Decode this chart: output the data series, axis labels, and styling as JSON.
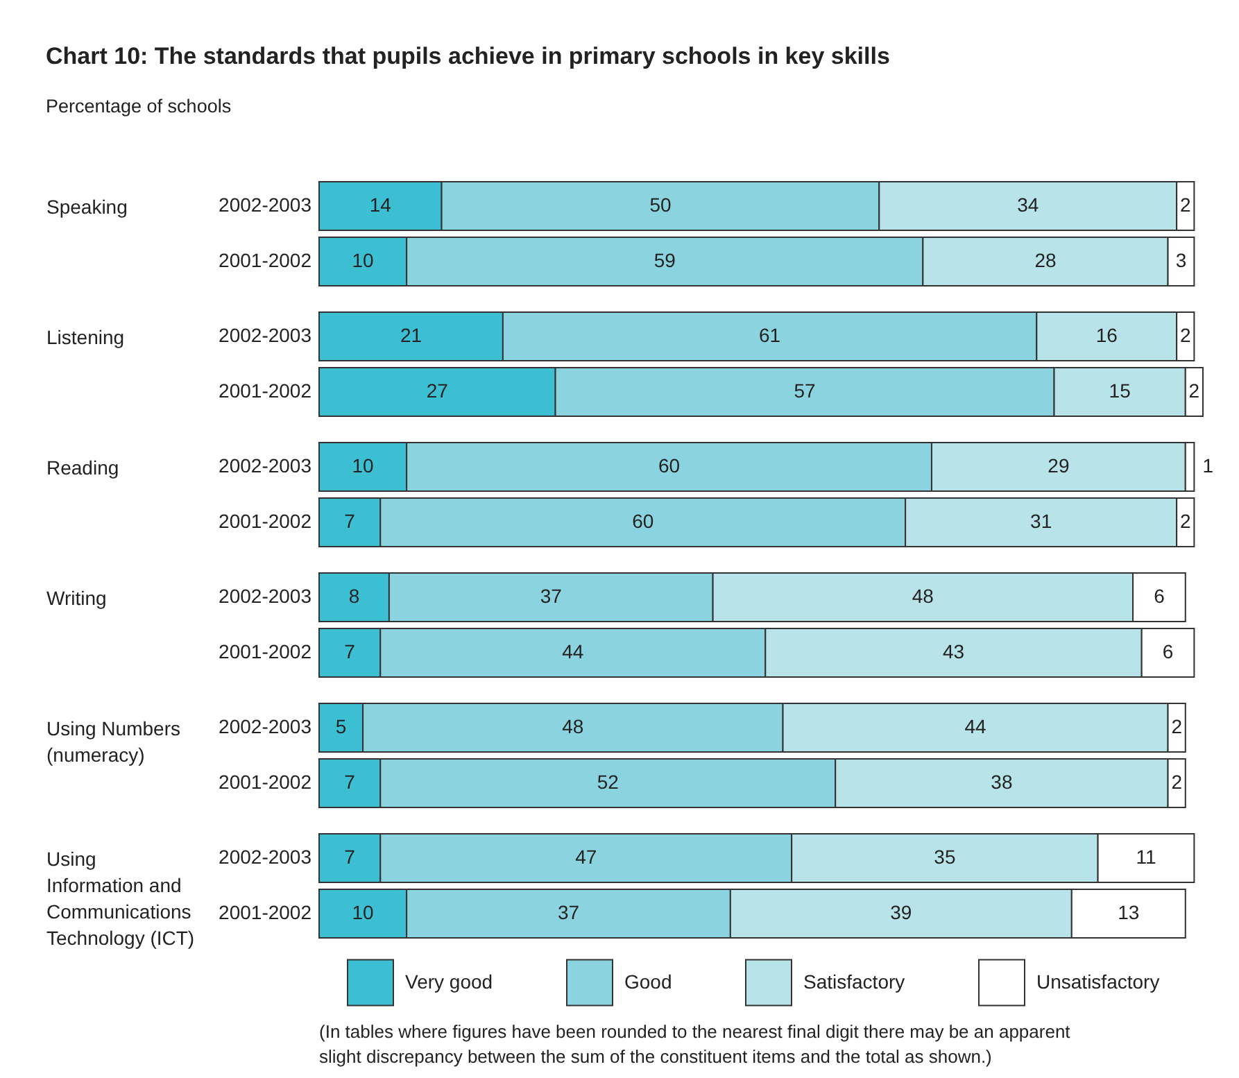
{
  "chart_data": [
    {
      "type": "bar",
      "title": "Chart 10: The standards that pupils achieve in primary schools in key skills",
      "subtitle": "Percentage of schools",
      "ylabel": "Speaking",
      "orientation": "horizontal",
      "stacked": true,
      "data_labels": true,
      "tick_labels": "y",
      "legend": "bottom",
      "categories": [
        "2002-2003",
        "2001-2002"
      ],
      "series": [
        {
          "name": "Very good",
          "color": "#3dbfd3",
          "values": [
            14,
            10
          ]
        },
        {
          "name": "Good",
          "color": "#8bd3df",
          "values": [
            50,
            59
          ]
        },
        {
          "name": "Satisfactory",
          "color": "#b8e3e9",
          "values": [
            34,
            28
          ]
        },
        {
          "name": "Unsatisfactory",
          "color": "#ffffff",
          "values": [
            2,
            3
          ]
        }
      ],
      "annotations": [
        "(In tables where figures have been rounded to the nearest final digit there may be an apparent slight discrepancy between the sum of the constituent items and the total as shown.)"
      ]
    },
    {
      "type": "bar",
      "ylabel": "Listening",
      "orientation": "horizontal",
      "stacked": true,
      "data_labels": true,
      "tick_labels": "y",
      "categories": [
        "2002-2003",
        "2001-2002"
      ],
      "series": [
        {
          "name": "Very good",
          "color": "#3dbfd3",
          "values": [
            21,
            27
          ]
        },
        {
          "name": "Good",
          "color": "#8bd3df",
          "values": [
            61,
            57
          ]
        },
        {
          "name": "Satisfactory",
          "color": "#b8e3e9",
          "values": [
            16,
            15
          ]
        },
        {
          "name": "Unsatisfactory",
          "color": "#ffffff",
          "values": [
            2,
            2
          ]
        }
      ]
    },
    {
      "type": "bar",
      "ylabel": "Reading",
      "orientation": "horizontal",
      "stacked": true,
      "data_labels": true,
      "tick_labels": "y",
      "categories": [
        "2002-2003",
        "2001-2002"
      ],
      "series": [
        {
          "name": "Very good",
          "color": "#3dbfd3",
          "values": [
            10,
            7
          ]
        },
        {
          "name": "Good",
          "color": "#8bd3df",
          "values": [
            60,
            60
          ]
        },
        {
          "name": "Satisfactory",
          "color": "#b8e3e9",
          "values": [
            29,
            31
          ]
        },
        {
          "name": "Unsatisfactory",
          "color": "#ffffff",
          "values": [
            1,
            2
          ]
        }
      ]
    },
    {
      "type": "bar",
      "ylabel": "Writing",
      "orientation": "horizontal",
      "stacked": true,
      "data_labels": true,
      "tick_labels": "y",
      "categories": [
        "2002-2003",
        "2001-2002"
      ],
      "series": [
        {
          "name": "Very good",
          "color": "#3dbfd3",
          "values": [
            8,
            7
          ]
        },
        {
          "name": "Good",
          "color": "#8bd3df",
          "values": [
            37,
            44
          ]
        },
        {
          "name": "Satisfactory",
          "color": "#b8e3e9",
          "values": [
            48,
            43
          ]
        },
        {
          "name": "Unsatisfactory",
          "color": "#ffffff",
          "values": [
            6,
            6
          ]
        }
      ]
    },
    {
      "type": "bar",
      "ylabel": "Using Numbers (numeracy)",
      "orientation": "horizontal",
      "stacked": true,
      "data_labels": true,
      "tick_labels": "y",
      "categories": [
        "2002-2003",
        "2001-2002"
      ],
      "series": [
        {
          "name": "Very good",
          "color": "#3dbfd3",
          "values": [
            5,
            7
          ]
        },
        {
          "name": "Good",
          "color": "#8bd3df",
          "values": [
            48,
            52
          ]
        },
        {
          "name": "Satisfactory",
          "color": "#b8e3e9",
          "values": [
            44,
            38
          ]
        },
        {
          "name": "Unsatisfactory",
          "color": "#ffffff",
          "values": [
            2,
            2
          ]
        }
      ]
    },
    {
      "type": "bar",
      "ylabel": "Using Information and Communications Technology (ICT)",
      "orientation": "horizontal",
      "stacked": true,
      "data_labels": true,
      "tick_labels": "y",
      "categories": [
        "2002-2003",
        "2001-2002"
      ],
      "series": [
        {
          "name": "Very good",
          "color": "#3dbfd3",
          "values": [
            7,
            10
          ]
        },
        {
          "name": "Good",
          "color": "#8bd3df",
          "values": [
            47,
            37
          ]
        },
        {
          "name": "Satisfactory",
          "color": "#b8e3e9",
          "values": [
            35,
            39
          ]
        },
        {
          "name": "Unsatisfactory",
          "color": "#ffffff",
          "values": [
            11,
            13
          ]
        }
      ]
    }
  ]
}
